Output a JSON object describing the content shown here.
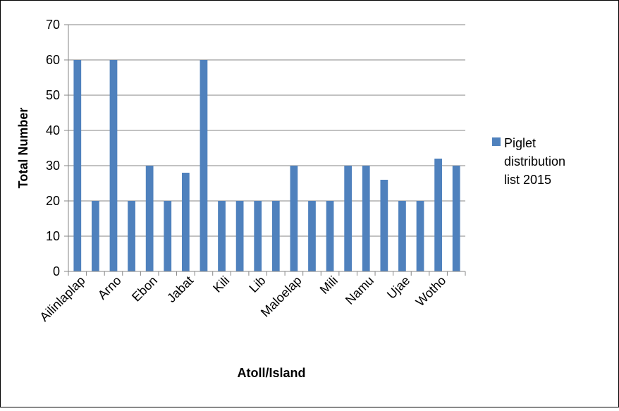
{
  "chart_data": {
    "type": "bar",
    "title": "",
    "xlabel": "Atoll/Island",
    "ylabel": "Total Number",
    "ylim": [
      0,
      70
    ],
    "yticks": [
      0,
      10,
      20,
      30,
      40,
      50,
      60,
      70
    ],
    "grid": true,
    "legend_position": "right",
    "categories": [
      "Ailinlaplap",
      "",
      "Arno",
      "",
      "Ebon",
      "",
      "Jabat",
      "",
      "Kili",
      "",
      "Lib",
      "",
      "Maloelap",
      "",
      "Mili",
      "",
      "Namu",
      "",
      "Ujae",
      "",
      "Wotho",
      ""
    ],
    "series": [
      {
        "name": "Piglet distribution list 2015",
        "legend_lines": [
          "Piglet",
          "distribution",
          "list 2015"
        ],
        "color": "#4f81bd",
        "values": [
          60,
          20,
          60,
          20,
          30,
          20,
          28,
          60,
          20,
          20,
          20,
          20,
          30,
          20,
          20,
          30,
          30,
          26,
          20,
          20,
          32,
          30
        ]
      }
    ],
    "gridline_color": "#868686"
  }
}
